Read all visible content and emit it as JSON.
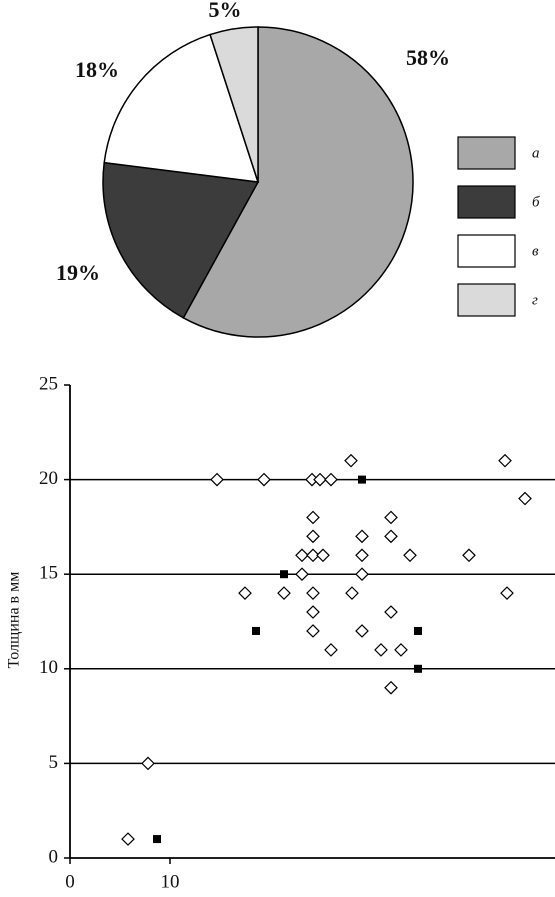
{
  "chart_data": [
    {
      "type": "pie",
      "categories": [
        "а",
        "б",
        "в",
        "г"
      ],
      "values": [
        58,
        19,
        18,
        5
      ],
      "value_labels": [
        "58%",
        "19%",
        "18%",
        "5%"
      ],
      "colors": [
        "#a8a8a8",
        "#3c3c3c",
        "#ffffff",
        "#dadada"
      ],
      "legend": "right"
    },
    {
      "type": "scatter",
      "ylabel": "Толщина в мм",
      "xlim": [
        0,
        48.5
      ],
      "ylim": [
        0,
        25
      ],
      "xticks": [
        0,
        10
      ],
      "yticks": [
        0,
        5,
        10,
        15,
        20,
        25
      ],
      "grid": true,
      "series": [
        {
          "marker": "diamond",
          "color": "#000000",
          "x": [
            5.8,
            14.7,
            19.4,
            24.2,
            25,
            26.1,
            28.1,
            43.5,
            45.5,
            24.3,
            32.1,
            24.3,
            29.2,
            32.1,
            23.2,
            24.3,
            25.3,
            29.2,
            34,
            39.9,
            23.2,
            29.2,
            17.5,
            21.4,
            24.3,
            28.2,
            43.7,
            24.3,
            32.1,
            24.3,
            29.2,
            26.1,
            31.1,
            33.1,
            32.1,
            7.8
          ],
          "values": [
            1,
            20,
            20,
            20,
            20,
            20,
            21,
            21,
            19,
            18,
            18,
            17,
            17,
            17,
            16,
            16,
            16,
            16,
            16,
            16,
            15,
            15,
            14,
            14,
            14,
            14,
            14,
            13,
            13,
            12,
            12,
            11,
            11,
            11,
            9,
            5
          ]
        },
        {
          "marker": "square",
          "color": "#000000",
          "x": [
            8.7,
            18.6,
            21.4,
            29.2,
            34.8,
            34.8
          ],
          "values": [
            1,
            12,
            15,
            20,
            12,
            10
          ]
        }
      ]
    }
  ]
}
